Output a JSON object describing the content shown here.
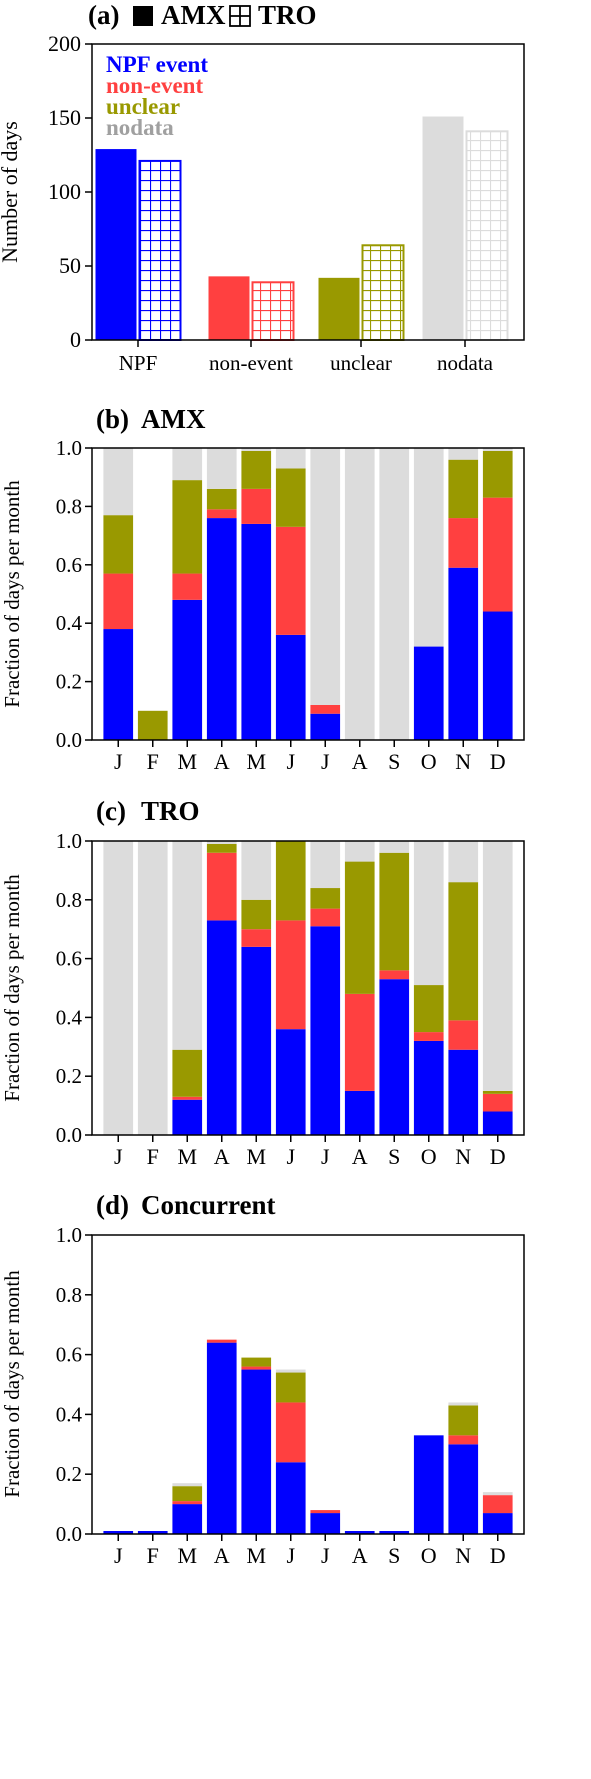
{
  "colors": {
    "npf": "#0000ff",
    "non_event": "#ff4040",
    "unclear": "#999900",
    "nodata": "#dcdcdc",
    "nodata_legend_text": "#a0a0a0"
  },
  "chart_data": [
    {
      "id": "a",
      "type": "bar",
      "panel_label": "(a)",
      "legend_amx_label": "AMX",
      "legend_tro_label": "TRO",
      "legend_amx_symbol": "filled-square-icon",
      "legend_tro_symbol": "grid-square-icon",
      "categories": [
        "NPF",
        "non-event",
        "unclear",
        "nodata"
      ],
      "category_keys": [
        "npf",
        "non_event",
        "unclear",
        "nodata"
      ],
      "series": [
        {
          "name": "AMX",
          "fill": "solid",
          "values": [
            129,
            43,
            42,
            151
          ]
        },
        {
          "name": "TRO",
          "fill": "hatched",
          "values": [
            121,
            39,
            64,
            141
          ]
        }
      ],
      "legend": [
        "NPF event",
        "non-event",
        "unclear",
        "nodata"
      ],
      "legend_placement": "top-left",
      "ylabel": "Number of days",
      "ylim": [
        0,
        200
      ],
      "yticks": [
        0,
        50,
        100,
        150,
        200
      ]
    },
    {
      "id": "b",
      "type": "bar",
      "stacked": true,
      "panel_label": "(b)",
      "title": "AMX",
      "categories": [
        "J",
        "F",
        "M",
        "A",
        "M",
        "J",
        "J",
        "A",
        "S",
        "O",
        "N",
        "D"
      ],
      "series": [
        {
          "key": "npf",
          "values": [
            0.38,
            0.0,
            0.48,
            0.76,
            0.74,
            0.36,
            0.09,
            0.0,
            0.0,
            0.32,
            0.59,
            0.44
          ]
        },
        {
          "key": "non_event",
          "values": [
            0.19,
            0.0,
            0.09,
            0.03,
            0.12,
            0.37,
            0.03,
            0.0,
            0.0,
            0.0,
            0.17,
            0.39
          ]
        },
        {
          "key": "unclear",
          "values": [
            0.2,
            0.1,
            0.32,
            0.07,
            0.13,
            0.2,
            0.0,
            0.0,
            0.0,
            0.0,
            0.2,
            0.16
          ]
        },
        {
          "key": "nodata",
          "values": [
            0.23,
            0.0,
            0.11,
            0.14,
            0.01,
            0.07,
            0.88,
            1.0,
            1.0,
            0.68,
            0.04,
            0.01
          ]
        }
      ],
      "ylabel": "Fraction of days per month",
      "ylim": [
        0,
        1
      ],
      "yticks": [
        "0.0",
        "0.2",
        "0.4",
        "0.6",
        "0.8",
        "1.0"
      ]
    },
    {
      "id": "c",
      "type": "bar",
      "stacked": true,
      "panel_label": "(c)",
      "title": "TRO",
      "categories": [
        "J",
        "F",
        "M",
        "A",
        "M",
        "J",
        "J",
        "A",
        "S",
        "O",
        "N",
        "D"
      ],
      "series": [
        {
          "key": "npf",
          "values": [
            0.0,
            0.0,
            0.12,
            0.73,
            0.64,
            0.36,
            0.71,
            0.15,
            0.53,
            0.32,
            0.29,
            0.08
          ]
        },
        {
          "key": "non_event",
          "values": [
            0.0,
            0.0,
            0.01,
            0.23,
            0.06,
            0.37,
            0.06,
            0.33,
            0.03,
            0.03,
            0.1,
            0.06
          ]
        },
        {
          "key": "unclear",
          "values": [
            0.0,
            0.0,
            0.16,
            0.03,
            0.1,
            0.27,
            0.07,
            0.45,
            0.4,
            0.16,
            0.47,
            0.01
          ]
        },
        {
          "key": "nodata",
          "values": [
            1.0,
            1.0,
            0.71,
            0.01,
            0.2,
            0.0,
            0.16,
            0.07,
            0.04,
            0.49,
            0.14,
            0.85
          ]
        }
      ],
      "ylabel": "Fraction of days per month",
      "ylim": [
        0,
        1
      ],
      "yticks": [
        "0.0",
        "0.2",
        "0.4",
        "0.6",
        "0.8",
        "1.0"
      ]
    },
    {
      "id": "d",
      "type": "bar",
      "stacked": true,
      "panel_label": "(d)",
      "title": "Concurrent",
      "categories": [
        "J",
        "F",
        "M",
        "A",
        "M",
        "J",
        "J",
        "A",
        "S",
        "O",
        "N",
        "D"
      ],
      "series": [
        {
          "key": "npf",
          "values": [
            0.01,
            0.01,
            0.1,
            0.64,
            0.55,
            0.24,
            0.07,
            0.01,
            0.01,
            0.33,
            0.3,
            0.07
          ]
        },
        {
          "key": "non_event",
          "values": [
            0.0,
            0.0,
            0.01,
            0.01,
            0.01,
            0.2,
            0.01,
            0.0,
            0.0,
            0.0,
            0.03,
            0.06
          ]
        },
        {
          "key": "unclear",
          "values": [
            0.0,
            0.0,
            0.05,
            0.0,
            0.03,
            0.1,
            0.0,
            0.0,
            0.0,
            0.0,
            0.1,
            0.0
          ]
        },
        {
          "key": "nodata",
          "values": [
            0.0,
            0.0,
            0.01,
            0.0,
            0.0,
            0.01,
            0.0,
            0.0,
            0.0,
            0.0,
            0.01,
            0.01
          ]
        }
      ],
      "ylabel": "Fraction of days per month",
      "ylim": [
        0,
        1
      ],
      "yticks": [
        "0.0",
        "0.2",
        "0.4",
        "0.6",
        "0.8",
        "1.0"
      ]
    }
  ]
}
